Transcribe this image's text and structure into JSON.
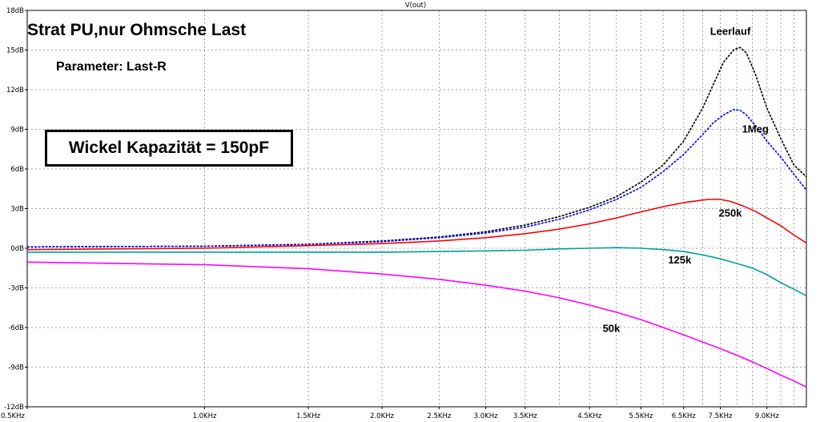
{
  "chart_data": {
    "type": "line",
    "title": "V(out)",
    "xscale": "log",
    "xlim": [
      500,
      10500
    ],
    "ylim": [
      -12,
      18
    ],
    "xticks": [
      {
        "value": 500,
        "label": "0.5KHz"
      },
      {
        "value": 1000,
        "label": "1.0KHz"
      },
      {
        "value": 1500,
        "label": "1.5KHz"
      },
      {
        "value": 2000,
        "label": "2.0KHz"
      },
      {
        "value": 2500,
        "label": "2.5KHz"
      },
      {
        "value": 3000,
        "label": "3.0KHz"
      },
      {
        "value": 3500,
        "label": "3.5KHz"
      },
      {
        "value": 4500,
        "label": "4.5KHz"
      },
      {
        "value": 5500,
        "label": "5.5KHz"
      },
      {
        "value": 6500,
        "label": "6.5KHz"
      },
      {
        "value": 7500,
        "label": "7.5KHz"
      },
      {
        "value": 9000,
        "label": "9.0KHz"
      }
    ],
    "yticks": [
      {
        "value": 18,
        "label": "18dB"
      },
      {
        "value": 15,
        "label": "15dB"
      },
      {
        "value": 12,
        "label": "12dB"
      },
      {
        "value": 9,
        "label": "9dB"
      },
      {
        "value": 6,
        "label": "6dB"
      },
      {
        "value": 3,
        "label": "3dB"
      },
      {
        "value": 0,
        "label": "0dB"
      },
      {
        "value": -3,
        "label": "-3dB"
      },
      {
        "value": -6,
        "label": "-6dB"
      },
      {
        "value": -9,
        "label": "-9dB"
      },
      {
        "value": -12,
        "label": "-12dB"
      }
    ],
    "grid": true,
    "series": [
      {
        "name": "Leerlauf",
        "color": "#000000",
        "dashed": true,
        "x": [
          500,
          1000,
          1500,
          2000,
          2500,
          3000,
          3500,
          4000,
          4500,
          5000,
          5500,
          6000,
          6500,
          7000,
          7300,
          7600,
          7900,
          8100,
          8300,
          8600,
          9000,
          9500,
          10000,
          10500
        ],
        "y": [
          0.1,
          0.15,
          0.3,
          0.55,
          0.85,
          1.25,
          1.75,
          2.4,
          3.1,
          3.9,
          5.0,
          6.3,
          8.1,
          10.6,
          12.4,
          14.1,
          15.0,
          15.2,
          14.8,
          13.2,
          10.6,
          8.3,
          6.3,
          5.4
        ]
      },
      {
        "name": "1Meg",
        "color": "#0000ff",
        "dashed": true,
        "x": [
          500,
          1000,
          1500,
          2000,
          2500,
          3000,
          3500,
          4000,
          4500,
          5000,
          5500,
          6000,
          6500,
          7000,
          7300,
          7600,
          7900,
          8100,
          8300,
          8600,
          9000,
          9500,
          10000,
          10500
        ],
        "y": [
          0.1,
          0.15,
          0.3,
          0.5,
          0.8,
          1.15,
          1.6,
          2.2,
          2.9,
          3.7,
          4.6,
          5.8,
          7.1,
          8.6,
          9.5,
          10.1,
          10.5,
          10.45,
          10.1,
          9.3,
          8.1,
          6.9,
          5.6,
          4.4
        ]
      },
      {
        "name": "250k",
        "color": "#ff0000",
        "dashed": false,
        "x": [
          500,
          1000,
          1500,
          2000,
          2500,
          3000,
          3500,
          4000,
          4500,
          5000,
          5500,
          6000,
          6500,
          7000,
          7200,
          7500,
          7800,
          8200,
          8600,
          9000,
          9500,
          10000,
          10500
        ],
        "y": [
          -0.1,
          0.0,
          0.2,
          0.35,
          0.55,
          0.8,
          1.1,
          1.45,
          1.85,
          2.3,
          2.75,
          3.15,
          3.45,
          3.65,
          3.7,
          3.7,
          3.55,
          3.2,
          2.8,
          2.3,
          1.7,
          1.0,
          0.4
        ]
      },
      {
        "name": "125k",
        "color": "#00a0a0",
        "dashed": false,
        "x": [
          500,
          1000,
          1500,
          2000,
          2500,
          3000,
          3500,
          4000,
          4500,
          5000,
          5500,
          6000,
          6500,
          7000,
          7500,
          8000,
          8500,
          9000,
          9500,
          10000,
          10500
        ],
        "y": [
          -0.3,
          -0.3,
          -0.3,
          -0.3,
          -0.25,
          -0.2,
          -0.15,
          -0.05,
          0.0,
          0.05,
          0.0,
          -0.1,
          -0.25,
          -0.5,
          -0.8,
          -1.15,
          -1.5,
          -2.0,
          -2.6,
          -3.1,
          -3.6
        ]
      },
      {
        "name": "50k",
        "color": "#ff00ff",
        "dashed": false,
        "x": [
          500,
          1000,
          1500,
          2000,
          2500,
          3000,
          3500,
          4000,
          4500,
          5000,
          5500,
          6000,
          6500,
          7000,
          7500,
          8000,
          8500,
          9000,
          9500,
          10000,
          10500
        ],
        "y": [
          -1.05,
          -1.25,
          -1.55,
          -1.95,
          -2.35,
          -2.8,
          -3.25,
          -3.75,
          -4.3,
          -4.85,
          -5.4,
          -6.0,
          -6.55,
          -7.1,
          -7.6,
          -8.1,
          -8.6,
          -9.1,
          -9.6,
          -10.05,
          -10.5
        ]
      }
    ],
    "labels": [
      {
        "text": "Leerlauf",
        "series": "Leerlauf",
        "x": 7800,
        "y": 16.4
      },
      {
        "text": "1Meg",
        "series": "1Meg",
        "x": 8600,
        "y": 9.0
      },
      {
        "text": "250k",
        "series": "250k",
        "x": 7800,
        "y": 2.65
      },
      {
        "text": "125k",
        "series": "125k",
        "x": 6400,
        "y": -0.9
      },
      {
        "text": "50k",
        "series": "50k",
        "x": 4900,
        "y": -6.1
      }
    ],
    "annotations": {
      "title": "Strat PU,nur Ohmsche Last",
      "parameter": "Parameter: Last-R",
      "boxed": "Wickel Kapazität = 150pF"
    }
  }
}
